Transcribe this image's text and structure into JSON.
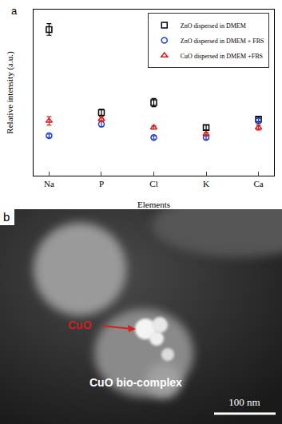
{
  "chart_data": {
    "type": "scatter",
    "annotations": [
      "a"
    ],
    "x_label": "Elements",
    "y_label": "Relative intensity (a.u.)",
    "categories": [
      "Na",
      "P",
      "Cl",
      "K",
      "Ca"
    ],
    "series": [
      {
        "name": "ZnO dispersed in DMEM",
        "color": "#000000",
        "marker": "square-open",
        "values": [
          8.8,
          3.8,
          4.4,
          2.9,
          3.4
        ],
        "errors": [
          0.35,
          0.2,
          0.25,
          0.15,
          0.15
        ]
      },
      {
        "name": "ZnO dispersed in DMEM + FBS",
        "color": "#1f3fd0",
        "marker": "circle-open",
        "values": [
          2.4,
          3.1,
          2.3,
          2.3,
          3.3
        ],
        "errors": [
          0.1,
          0.15,
          0.1,
          0.1,
          0.15
        ]
      },
      {
        "name": "CuO dispersed in DMEM +FBS",
        "color": "#d01f1f",
        "marker": "triangle-up-open",
        "values": [
          3.3,
          3.4,
          2.9,
          2.5,
          2.9
        ],
        "errors": [
          0.25,
          0.15,
          0.1,
          0.1,
          0.15
        ]
      }
    ],
    "ylim": [
      0,
      10
    ],
    "tick_labels": "x",
    "legend": "top right",
    "grid": false
  },
  "image": {
    "label": "b",
    "particle_label": "CuO",
    "complex_label": "CuO bio-complex",
    "scale_bar": "100 nm"
  }
}
